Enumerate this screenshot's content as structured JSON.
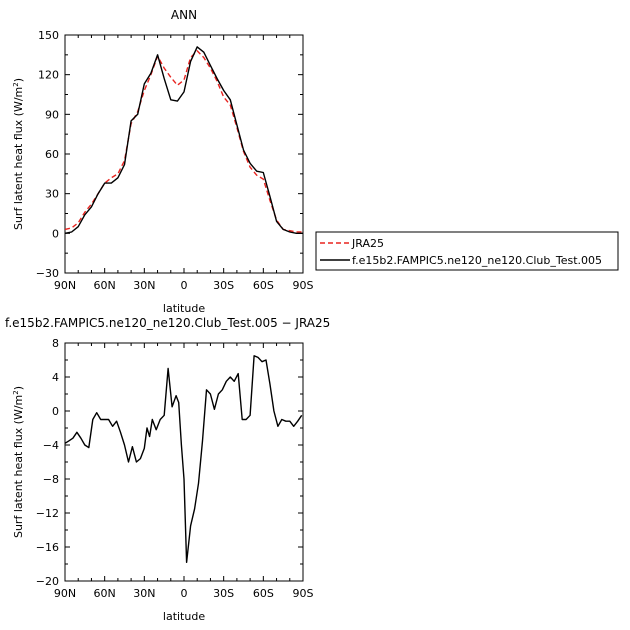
{
  "chart_data": [
    {
      "type": "line",
      "title": "ANN",
      "xlabel": "latitude",
      "ylabel": "Surf latent heat flux (W/m²)",
      "ylabel_base": "Surf latent heat flux (W/m",
      "ylabel_sup": "2",
      "ylabel_close": ")",
      "xlim": [
        90,
        -90
      ],
      "ylim": [
        -30,
        150
      ],
      "xticks": [
        90,
        60,
        30,
        0,
        -30,
        -60,
        -90
      ],
      "xtick_labels": [
        "90N",
        "60N",
        "30N",
        "0",
        "30S",
        "60S",
        "90S"
      ],
      "yticks": [
        -30,
        0,
        30,
        60,
        90,
        120,
        150
      ],
      "ytick_labels": [
        "−30",
        "0",
        "30",
        "60",
        "90",
        "120",
        "150"
      ],
      "grid": false,
      "legend_position": "right",
      "series": [
        {
          "name": "JRA25",
          "color": "#e8231f",
          "dash": "5,3",
          "x": [
            90,
            85,
            80,
            75,
            70,
            65,
            60,
            55,
            50,
            45,
            40,
            35,
            30,
            25,
            20,
            15,
            10,
            5,
            0,
            -5,
            -10,
            -15,
            -20,
            -25,
            -30,
            -35,
            -40,
            -45,
            -50,
            -55,
            -60,
            -65,
            -70,
            -75,
            -80,
            -85,
            -90
          ],
          "values": [
            3,
            4,
            8,
            16,
            22,
            30,
            38,
            42,
            45,
            55,
            83,
            92,
            108,
            120,
            134,
            125,
            118,
            112,
            116,
            133,
            138,
            133,
            125,
            115,
            103,
            97,
            80,
            62,
            50,
            44,
            41,
            25,
            10,
            3,
            2,
            1,
            1
          ]
        },
        {
          "name": "f.e15b2.FAMPIC5.ne120_ne120.Club_Test.005",
          "color": "#000000",
          "dash": "",
          "x": [
            90,
            85,
            80,
            75,
            70,
            65,
            60,
            55,
            50,
            45,
            40,
            35,
            30,
            25,
            20,
            15,
            10,
            5,
            0,
            -5,
            -10,
            -15,
            -20,
            -25,
            -30,
            -35,
            -40,
            -45,
            -50,
            -55,
            -60,
            -65,
            -70,
            -75,
            -80,
            -85,
            -90
          ],
          "values": [
            0,
            1,
            5,
            14,
            20,
            30,
            38,
            38,
            42,
            52,
            85,
            90,
            113,
            121,
            135,
            117,
            101,
            100,
            107,
            130,
            141,
            137,
            127,
            117,
            108,
            101,
            82,
            63,
            53,
            47,
            46,
            28,
            9,
            3,
            1,
            0,
            0
          ]
        }
      ]
    },
    {
      "type": "line",
      "title": "f.e15b2.FAMPIC5.ne120_ne120.Club_Test.005 − JRA25",
      "xlabel": "latitude",
      "ylabel": "Surf latent heat flux (W/m²)",
      "ylabel_base": "Surf latent heat flux (W/m",
      "ylabel_sup": "2",
      "ylabel_close": ")",
      "xlim": [
        90,
        -90
      ],
      "ylim": [
        -20,
        8
      ],
      "xticks": [
        90,
        60,
        30,
        0,
        -30,
        -60,
        -90
      ],
      "xtick_labels": [
        "90N",
        "60N",
        "30N",
        "0",
        "30S",
        "60S",
        "90S"
      ],
      "yticks": [
        -20,
        -16,
        -12,
        -8,
        -4,
        0,
        4,
        8
      ],
      "ytick_labels": [
        "−20",
        "−16",
        "−12",
        "−8",
        "−4",
        "0",
        "4",
        "8"
      ],
      "grid": false,
      "series": [
        {
          "color": "#000000",
          "x": [
            90,
            87,
            84,
            81,
            78,
            75,
            72,
            69,
            66,
            63,
            60,
            57,
            54,
            51,
            48,
            45,
            42,
            39,
            36,
            33,
            30,
            28,
            26,
            24,
            21,
            18,
            15,
            12,
            9,
            6,
            4,
            2,
            0,
            -2,
            -5,
            -8,
            -11,
            -14,
            -17,
            -20,
            -23,
            -26,
            -29,
            -32,
            -35,
            -38,
            -41,
            -44,
            -47,
            -50,
            -53,
            -56,
            -59,
            -62,
            -65,
            -68,
            -71,
            -74,
            -77,
            -80,
            -83,
            -86,
            -89
          ],
          "values": [
            -3.8,
            -3.5,
            -3.2,
            -2.5,
            -3.2,
            -4.0,
            -4.3,
            -1.0,
            -0.2,
            -1.0,
            -1.0,
            -1.0,
            -1.8,
            -1.2,
            -2.5,
            -4.0,
            -6.0,
            -4.2,
            -6.0,
            -5.6,
            -4.4,
            -2.0,
            -3.0,
            -1.0,
            -2.2,
            -1.0,
            -0.5,
            5.0,
            0.5,
            1.8,
            1.0,
            -4.0,
            -8.0,
            -17.8,
            -13.5,
            -11.5,
            -8.5,
            -3.5,
            2.5,
            2.0,
            0.2,
            2.0,
            2.5,
            3.5,
            4.0,
            3.5,
            4.4,
            -1.0,
            -1.0,
            -0.5,
            6.5,
            6.3,
            5.8,
            6.0,
            3.2,
            0.0,
            -1.8,
            -1.0,
            -1.2,
            -1.2,
            -1.8,
            -1.2,
            -0.5
          ]
        }
      ]
    }
  ]
}
